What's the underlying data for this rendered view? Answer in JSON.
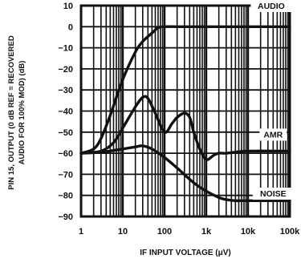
{
  "chart_data": {
    "type": "line",
    "xlabel": "IF INPUT VOLTAGE (μV)",
    "ylabel_lines": [
      "PIN 15, OUTPUT (0 dB REF = RECOVERED",
      "AUDIO FOR 100% MOD) (dB)"
    ],
    "xscale": "log",
    "xlim": [
      1,
      100000
    ],
    "ylim": [
      -90,
      10
    ],
    "xticks": [
      1,
      10,
      100,
      1000,
      10000,
      100000
    ],
    "xtick_labels": [
      "1",
      "10",
      "100",
      "1k",
      "10k",
      "100k"
    ],
    "yticks": [
      10,
      0,
      -10,
      -20,
      -30,
      -40,
      -50,
      -60,
      -70,
      -80,
      -90
    ],
    "ytick_labels": [
      "10",
      "0",
      "−10",
      "−20",
      "−30",
      "−40",
      "−50",
      "−60",
      "−70",
      "−80",
      "−90"
    ],
    "grid": true,
    "series": [
      {
        "name": "AUDIO",
        "x": [
          1,
          2,
          3,
          5,
          10,
          20,
          30,
          50,
          70,
          100,
          200,
          1000,
          10000,
          100000
        ],
        "y": [
          -60,
          -58,
          -53,
          -42,
          -25,
          -12,
          -7,
          -3,
          -0.5,
          0,
          0,
          0,
          0,
          0
        ]
      },
      {
        "name": "AMR",
        "x": [
          1,
          3,
          6,
          10,
          20,
          30,
          40,
          60,
          100,
          150,
          200,
          300,
          400,
          500,
          700,
          1000,
          1500,
          2000,
          3000,
          5000,
          10000,
          100000
        ],
        "y": [
          -60,
          -59,
          -55,
          -48,
          -38,
          -33.5,
          -34,
          -41,
          -50,
          -46,
          -43,
          -41,
          -43,
          -50,
          -58,
          -63,
          -61,
          -60,
          -60,
          -59.5,
          -59,
          -59
        ]
      },
      {
        "name": "NOISE",
        "x": [
          1,
          3,
          10,
          20,
          30,
          50,
          100,
          200,
          500,
          1000,
          2000,
          3000,
          5000,
          10000,
          100000
        ],
        "y": [
          -60,
          -59.5,
          -58,
          -57,
          -56.5,
          -58,
          -62,
          -67,
          -74,
          -78,
          -81,
          -82,
          -82.5,
          -82.5,
          -82.5
        ]
      }
    ]
  }
}
